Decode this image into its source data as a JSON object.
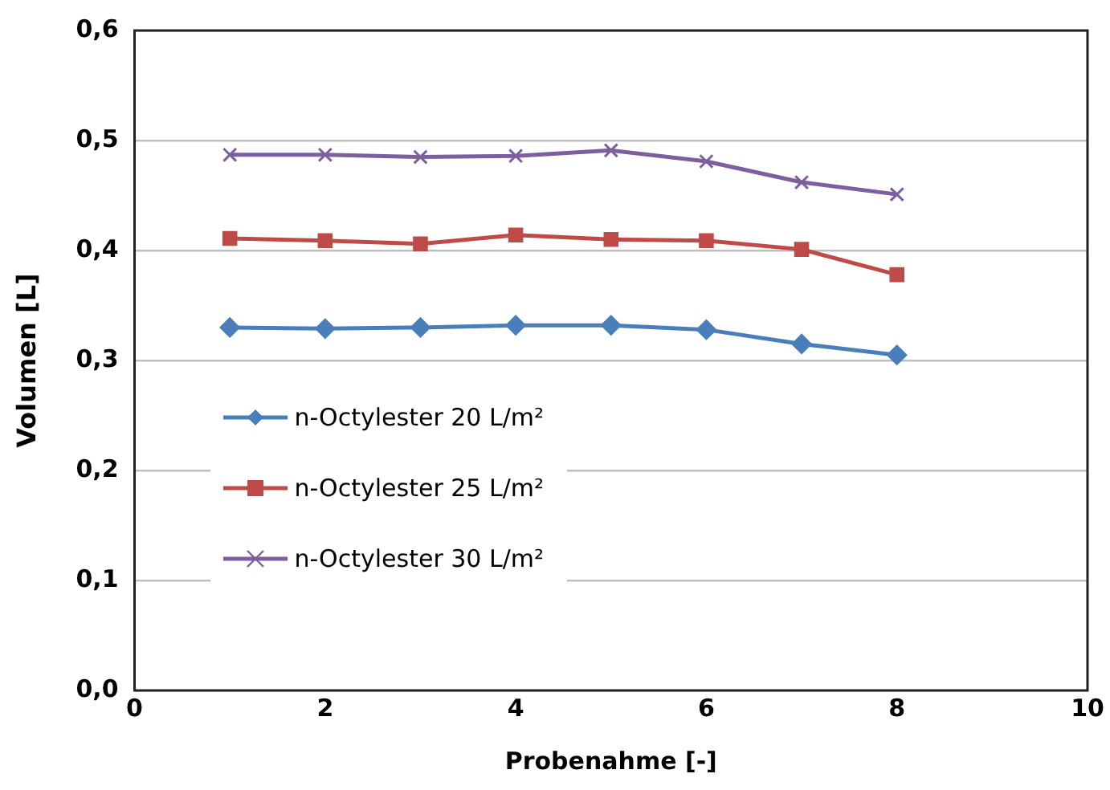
{
  "chart_data": {
    "type": "line",
    "xlabel": "Probenahme [-]",
    "ylabel": "Volumen [L]",
    "x": [
      1,
      2,
      3,
      4,
      5,
      6,
      7,
      8
    ],
    "series": [
      {
        "name": "n-Octylester 20 L/m²",
        "color": "#4a7ebb",
        "marker": "diamond",
        "values": [
          0.33,
          0.329,
          0.33,
          0.332,
          0.332,
          0.328,
          0.315,
          0.305
        ]
      },
      {
        "name": "n-Octylester 25 L/m²",
        "color": "#be4b48",
        "marker": "square",
        "values": [
          0.411,
          0.409,
          0.406,
          0.414,
          0.41,
          0.409,
          0.401,
          0.378
        ]
      },
      {
        "name": "n-Octylester 30 L/m²",
        "color": "#7d5fa0",
        "marker": "cross",
        "values": [
          0.487,
          0.487,
          0.485,
          0.486,
          0.491,
          0.481,
          0.462,
          0.451
        ]
      }
    ],
    "xlim": [
      0,
      10
    ],
    "xticks": [
      0,
      2,
      4,
      6,
      8,
      10
    ],
    "ylim": [
      0,
      0.6
    ],
    "yticks": [
      {
        "value": 0,
        "label": "0,0"
      },
      {
        "value": 0.1,
        "label": "0,1"
      },
      {
        "value": 0.2,
        "label": "0,2"
      },
      {
        "value": 0.3,
        "label": "0,3"
      },
      {
        "value": 0.4,
        "label": "0,4"
      },
      {
        "value": 0.5,
        "label": "0,5"
      },
      {
        "value": 0.6,
        "label": "0,6"
      }
    ],
    "grid": "y",
    "legend": "left",
    "line_style": "solid"
  }
}
